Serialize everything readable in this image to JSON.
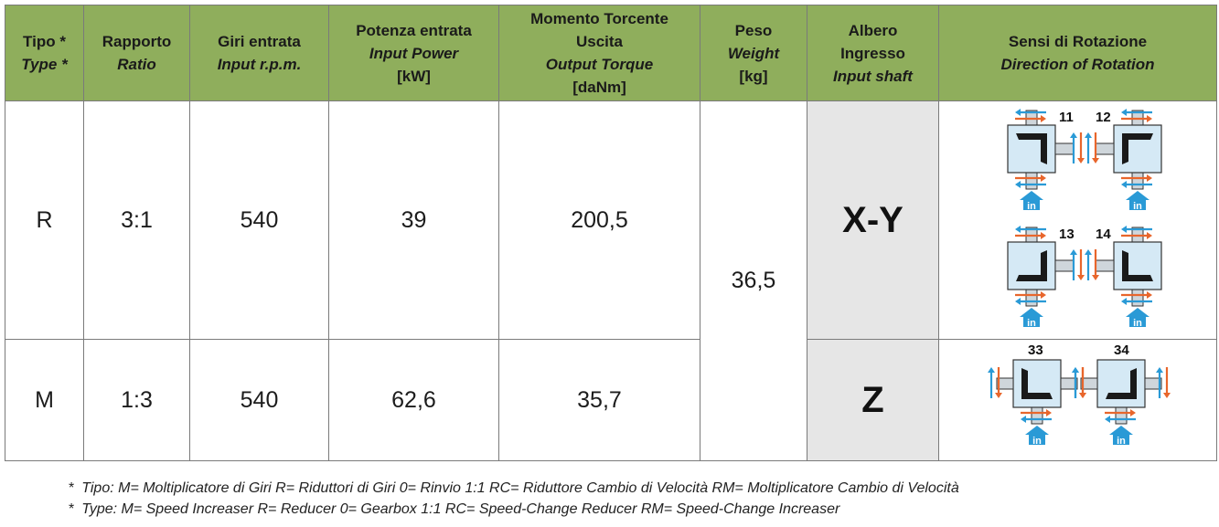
{
  "headers": [
    {
      "it": [
        "Tipo *"
      ],
      "en": [
        "Type *"
      ]
    },
    {
      "it": [
        "Rapporto"
      ],
      "en": [
        "Ratio"
      ]
    },
    {
      "it": [
        "Giri entrata"
      ],
      "en": [
        "Input r.p.m."
      ]
    },
    {
      "it": [
        "Potenza entrata"
      ],
      "en": [
        "Input Power"
      ],
      "unit": "[kW]"
    },
    {
      "it": [
        "Momento Torcente",
        "Uscita"
      ],
      "en": [
        "Output Torque"
      ],
      "unit": "[daNm]"
    },
    {
      "it": [
        "Peso"
      ],
      "en": [
        "Weight"
      ],
      "unit": "[kg]"
    },
    {
      "it": [
        "Albero",
        "Ingresso"
      ],
      "en": [
        "Input shaft"
      ]
    },
    {
      "it": [
        "Sensi di Rotazione"
      ],
      "en": [
        "Direction of Rotation"
      ]
    }
  ],
  "rows": [
    {
      "type": "R",
      "ratio": "3:1",
      "rpm": "540",
      "power": "39",
      "torque": "200,5",
      "shaft": "X-Y",
      "diagrams": [
        "11",
        "12",
        "13",
        "14"
      ]
    },
    {
      "type": "M",
      "ratio": "1:3",
      "rpm": "540",
      "power": "62,6",
      "torque": "35,7",
      "shaft": "Z",
      "diagrams": [
        "33",
        "34"
      ]
    }
  ],
  "weight": "36,5",
  "in_label": "in",
  "colors": {
    "header": "#8fae5c",
    "shaft_cell": "#e6e6e6",
    "arrow_blue": "#2a9ad6",
    "arrow_orange": "#e8662c",
    "box": "#d5e9f5"
  },
  "footnotes": [
    {
      "star": "*",
      "text": "Tipo: M= Moltiplicatore di Giri   R= Riduttori di Giri   0= Rinvio 1:1   RC= Riduttore Cambio di Velocità   RM=  Moltiplicatore Cambio di Velocità"
    },
    {
      "star": "*",
      "text": "Type: M= Speed Increaser   R= Reducer    0= Gearbox 1:1    RC= Speed-Change Reducer   RM=  Speed-Change Increaser"
    }
  ]
}
